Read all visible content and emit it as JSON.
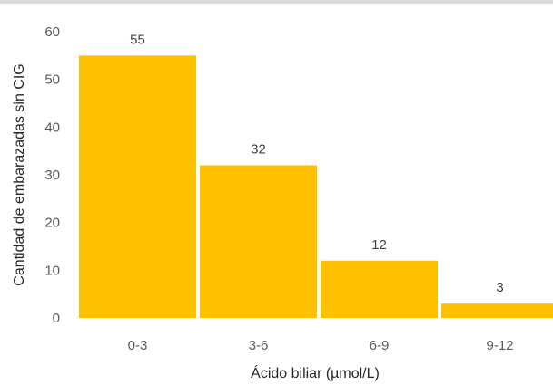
{
  "chart_data": {
    "type": "bar",
    "categories": [
      "0-3",
      "3-6",
      "6-9",
      "9-12"
    ],
    "values": [
      55,
      32,
      12,
      3
    ],
    "title": "",
    "xlabel": "Ácido biliar (µmol/L)",
    "ylabel": "Cantidad de embarazadas sin CIG",
    "ylim": [
      0,
      60
    ],
    "yticks": [
      0,
      10,
      20,
      30,
      40,
      50,
      60
    ],
    "grid": false,
    "legend": "none",
    "data_labels": true,
    "bar_color": "#ffc000",
    "frame_color": "#d9d9d9"
  }
}
